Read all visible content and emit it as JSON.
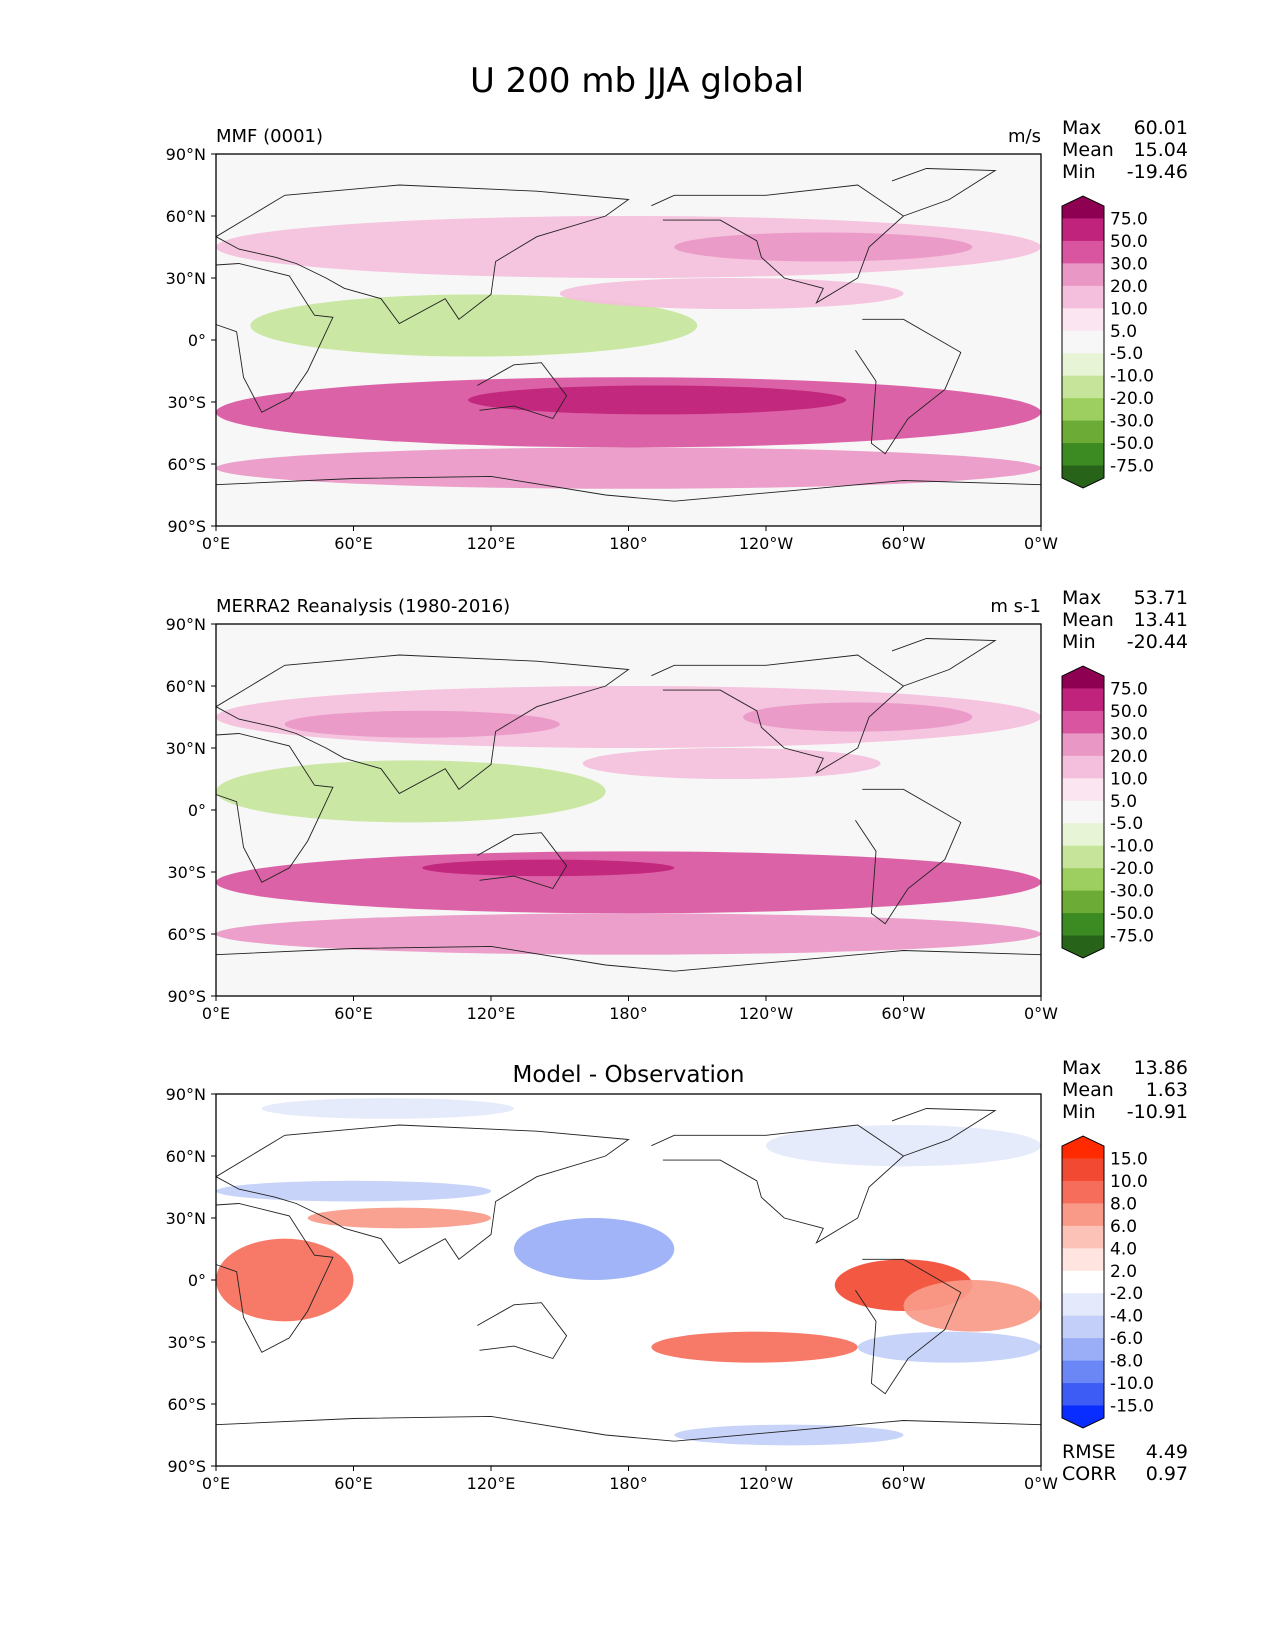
{
  "figure": {
    "title": "U 200 mb JJA global",
    "lon_ticks": [
      "0°E",
      "60°E",
      "120°E",
      "180°",
      "120°W",
      "60°W",
      "0°W"
    ],
    "lat_ticks": [
      "90°N",
      "60°N",
      "30°N",
      "0°",
      "30°S",
      "60°S",
      "90°S"
    ],
    "colors": {
      "ref_scale": [
        "#276419",
        "#3c8a22",
        "#6cab36",
        "#9ccf60",
        "#c6e59b",
        "#e8f4d6",
        "#f7f7f7",
        "#fbe5f0",
        "#f4bfdc",
        "#e997c5",
        "#d9559f",
        "#c0237c",
        "#8e0152"
      ],
      "diff_scale": [
        "#0a2dff",
        "#3d5cf6",
        "#6b87f5",
        "#99aef6",
        "#c3cff8",
        "#e4e9fb",
        "#ffffff",
        "#ffe4df",
        "#fcc2b7",
        "#f99a89",
        "#f66e5b",
        "#f24a32",
        "#ff2a00"
      ]
    }
  },
  "chart_data": [
    {
      "type": "heatmap",
      "title": "MMF (0001)",
      "units": "m/s",
      "stats": [
        {
          "label": "Max",
          "value": "60.01"
        },
        {
          "label": "Mean",
          "value": "15.04"
        },
        {
          "label": "Min",
          "value": "-19.46"
        }
      ],
      "colorbar_levels": [
        "75.0",
        "50.0",
        "30.0",
        "20.0",
        "10.0",
        "5.0",
        "-5.0",
        "-10.0",
        "-20.0",
        "-30.0",
        "-50.0",
        "-75.0"
      ],
      "x_range_deg": [
        0,
        360
      ],
      "y_range_deg": [
        -90,
        90
      ],
      "features": [
        {
          "lon": [
            0,
            360
          ],
          "lat": [
            -52,
            -18
          ],
          "value": 42
        },
        {
          "lon": [
            110,
            275
          ],
          "lat": [
            -36,
            -22
          ],
          "value": 55
        },
        {
          "lon": [
            0,
            360
          ],
          "lat": [
            -72,
            -52
          ],
          "value": 22
        },
        {
          "lon": [
            0,
            360
          ],
          "lat": [
            30,
            60
          ],
          "value": 18
        },
        {
          "lon": [
            200,
            330
          ],
          "lat": [
            38,
            52
          ],
          "value": 28
        },
        {
          "lon": [
            15,
            210
          ],
          "lat": [
            -8,
            22
          ],
          "value": -12
        },
        {
          "lon": [
            150,
            300
          ],
          "lat": [
            15,
            30
          ],
          "value": 12
        }
      ]
    },
    {
      "type": "heatmap",
      "title": "MERRA2 Reanalysis (1980-2016)",
      "units": "m s-1",
      "stats": [
        {
          "label": "Max",
          "value": "53.71"
        },
        {
          "label": "Mean",
          "value": "13.41"
        },
        {
          "label": "Min",
          "value": "-20.44"
        }
      ],
      "colorbar_levels": [
        "75.0",
        "50.0",
        "30.0",
        "20.0",
        "10.0",
        "5.0",
        "-5.0",
        "-10.0",
        "-20.0",
        "-30.0",
        "-50.0",
        "-75.0"
      ],
      "x_range_deg": [
        0,
        360
      ],
      "y_range_deg": [
        -90,
        90
      ],
      "features": [
        {
          "lon": [
            0,
            360
          ],
          "lat": [
            -50,
            -20
          ],
          "value": 40
        },
        {
          "lon": [
            90,
            200
          ],
          "lat": [
            -32,
            -24
          ],
          "value": 55
        },
        {
          "lon": [
            0,
            360
          ],
          "lat": [
            -70,
            -50
          ],
          "value": 22
        },
        {
          "lon": [
            0,
            360
          ],
          "lat": [
            30,
            60
          ],
          "value": 16
        },
        {
          "lon": [
            30,
            150
          ],
          "lat": [
            35,
            48
          ],
          "value": 28
        },
        {
          "lon": [
            230,
            330
          ],
          "lat": [
            38,
            52
          ],
          "value": 26
        },
        {
          "lon": [
            0,
            170
          ],
          "lat": [
            -6,
            24
          ],
          "value": -13
        },
        {
          "lon": [
            160,
            290
          ],
          "lat": [
            15,
            30
          ],
          "value": 12
        }
      ]
    },
    {
      "type": "heatmap",
      "title": "Model - Observation",
      "units": "",
      "stats": [
        {
          "label": "Max",
          "value": "13.86"
        },
        {
          "label": "Mean",
          "value": "1.63"
        },
        {
          "label": "Min",
          "value": "-10.91"
        }
      ],
      "extra_stats": [
        {
          "label": "RMSE",
          "value": "4.49"
        },
        {
          "label": "CORR",
          "value": "0.97"
        }
      ],
      "colorbar_levels": [
        "15.0",
        "10.0",
        "8.0",
        "6.0",
        "4.0",
        "2.0",
        "-2.0",
        "-4.0",
        "-6.0",
        "-8.0",
        "-10.0",
        "-15.0"
      ],
      "x_range_deg": [
        0,
        360
      ],
      "y_range_deg": [
        -90,
        90
      ],
      "features": [
        {
          "lon": [
            0,
            60
          ],
          "lat": [
            -20,
            20
          ],
          "value": 8
        },
        {
          "lon": [
            40,
            120
          ],
          "lat": [
            25,
            35
          ],
          "value": 7
        },
        {
          "lon": [
            0,
            120
          ],
          "lat": [
            38,
            48
          ],
          "value": -6
        },
        {
          "lon": [
            130,
            200
          ],
          "lat": [
            0,
            30
          ],
          "value": -7
        },
        {
          "lon": [
            270,
            330
          ],
          "lat": [
            -15,
            10
          ],
          "value": 10
        },
        {
          "lon": [
            190,
            280
          ],
          "lat": [
            -40,
            -25
          ],
          "value": 8
        },
        {
          "lon": [
            280,
            360
          ],
          "lat": [
            -40,
            -25
          ],
          "value": -5
        },
        {
          "lon": [
            200,
            300
          ],
          "lat": [
            -80,
            -70
          ],
          "value": -5
        },
        {
          "lon": [
            20,
            130
          ],
          "lat": [
            78,
            88
          ],
          "value": -4
        },
        {
          "lon": [
            240,
            360
          ],
          "lat": [
            55,
            75
          ],
          "value": -4
        },
        {
          "lon": [
            300,
            360
          ],
          "lat": [
            -25,
            0
          ],
          "value": 7
        }
      ]
    }
  ]
}
